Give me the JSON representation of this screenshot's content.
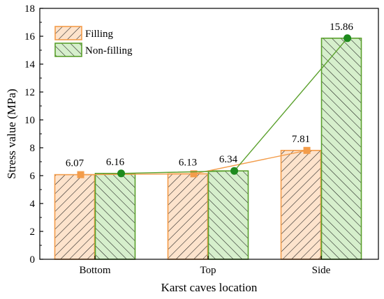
{
  "chart_data": {
    "type": "bar",
    "categories": [
      "Bottom",
      "Top",
      "Side"
    ],
    "series": [
      {
        "name": "Filling",
        "values": [
          6.07,
          6.13,
          7.81
        ],
        "color": "#f39c4a",
        "fill": "#fde3cc",
        "hatch": "forward"
      },
      {
        "name": "Non-filling",
        "values": [
          6.16,
          6.34,
          15.86
        ],
        "color": "#5aa02c",
        "fill": "#d6efcc",
        "hatch": "backward"
      }
    ],
    "data_labels": [
      [
        "6.07",
        "6.13",
        "7.81"
      ],
      [
        "6.16",
        "6.34",
        "15.86"
      ]
    ],
    "overlay_lines": true,
    "xlabel": "Karst caves location",
    "ylabel": "Stress value (MPa)",
    "ylim": [
      0,
      18
    ],
    "yticks": [
      "0",
      "2",
      "4",
      "6",
      "8",
      "10",
      "12",
      "14",
      "16",
      "18"
    ],
    "grid": false,
    "legend_position": "top-left"
  }
}
